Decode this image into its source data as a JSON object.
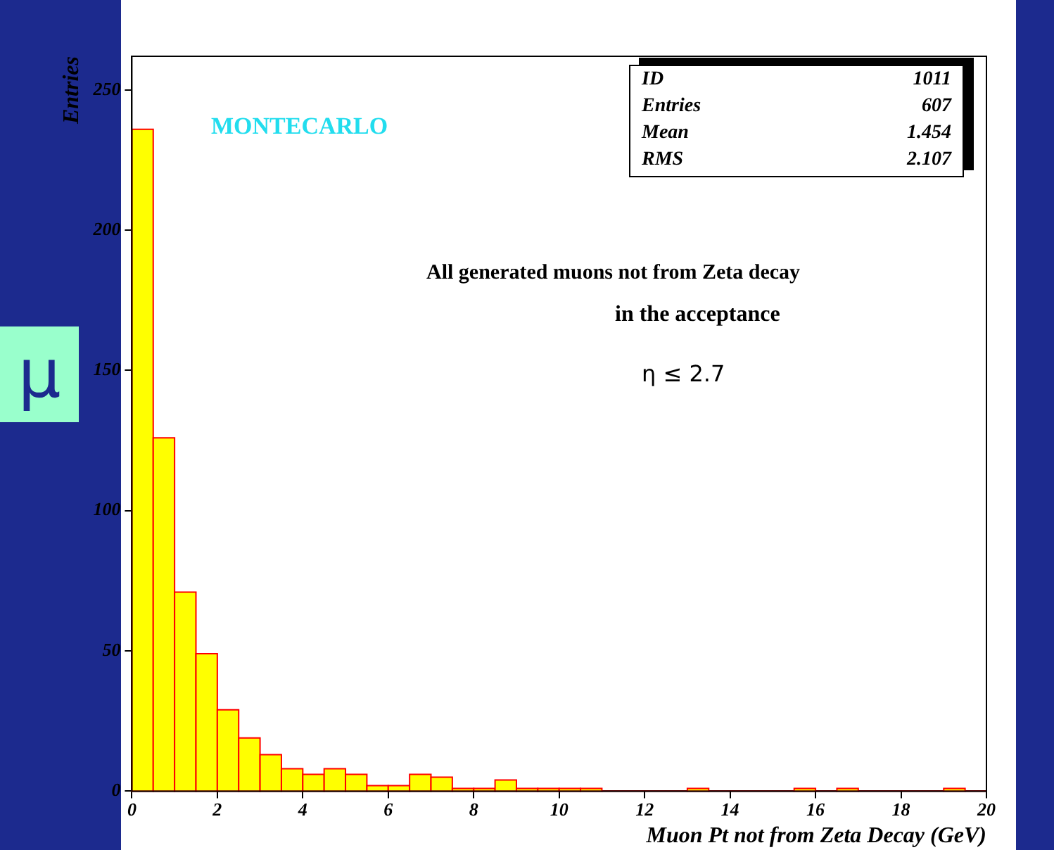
{
  "chart_data": {
    "type": "histogram",
    "xlabel": "Muon Pt not from Zeta Decay (GeV)",
    "ylabel": "Entries",
    "bins": [
      0,
      0.5,
      1,
      1.5,
      2,
      2.5,
      3,
      3.5,
      4,
      4.5,
      5,
      5.5,
      6,
      6.5,
      7,
      7.5,
      8,
      8.5,
      9,
      9.5,
      10,
      10.5,
      11,
      11.5,
      12,
      12.5,
      13,
      13.5,
      14,
      14.5,
      15,
      15.5,
      16,
      16.5,
      17,
      17.5,
      18,
      18.5,
      19,
      19.5,
      20
    ],
    "values": [
      236,
      126,
      71,
      49,
      29,
      19,
      13,
      8,
      6,
      8,
      6,
      2,
      2,
      6,
      5,
      1,
      1,
      4,
      1,
      1,
      1,
      1,
      0,
      0,
      0,
      0,
      1,
      0,
      0,
      0,
      0,
      1,
      0,
      1,
      0,
      0,
      0,
      0,
      1,
      0
    ],
    "color": "#ffff00",
    "xlim": [
      0,
      20
    ],
    "xticks": [
      0,
      2,
      4,
      6,
      8,
      10,
      12,
      14,
      16,
      18,
      20
    ],
    "ylim": [
      0,
      262
    ],
    "yticks": [
      0,
      50,
      100,
      150,
      200,
      250
    ],
    "annotations": [
      "μ",
      "MONTECARLO",
      "All generated muons not from Zeta decay",
      "in the acceptance",
      "η ≤ 2.7",
      "ID",
      "1011",
      "Entries",
      "607",
      "Mean",
      "1.454",
      "RMS",
      "2.107"
    ]
  }
}
